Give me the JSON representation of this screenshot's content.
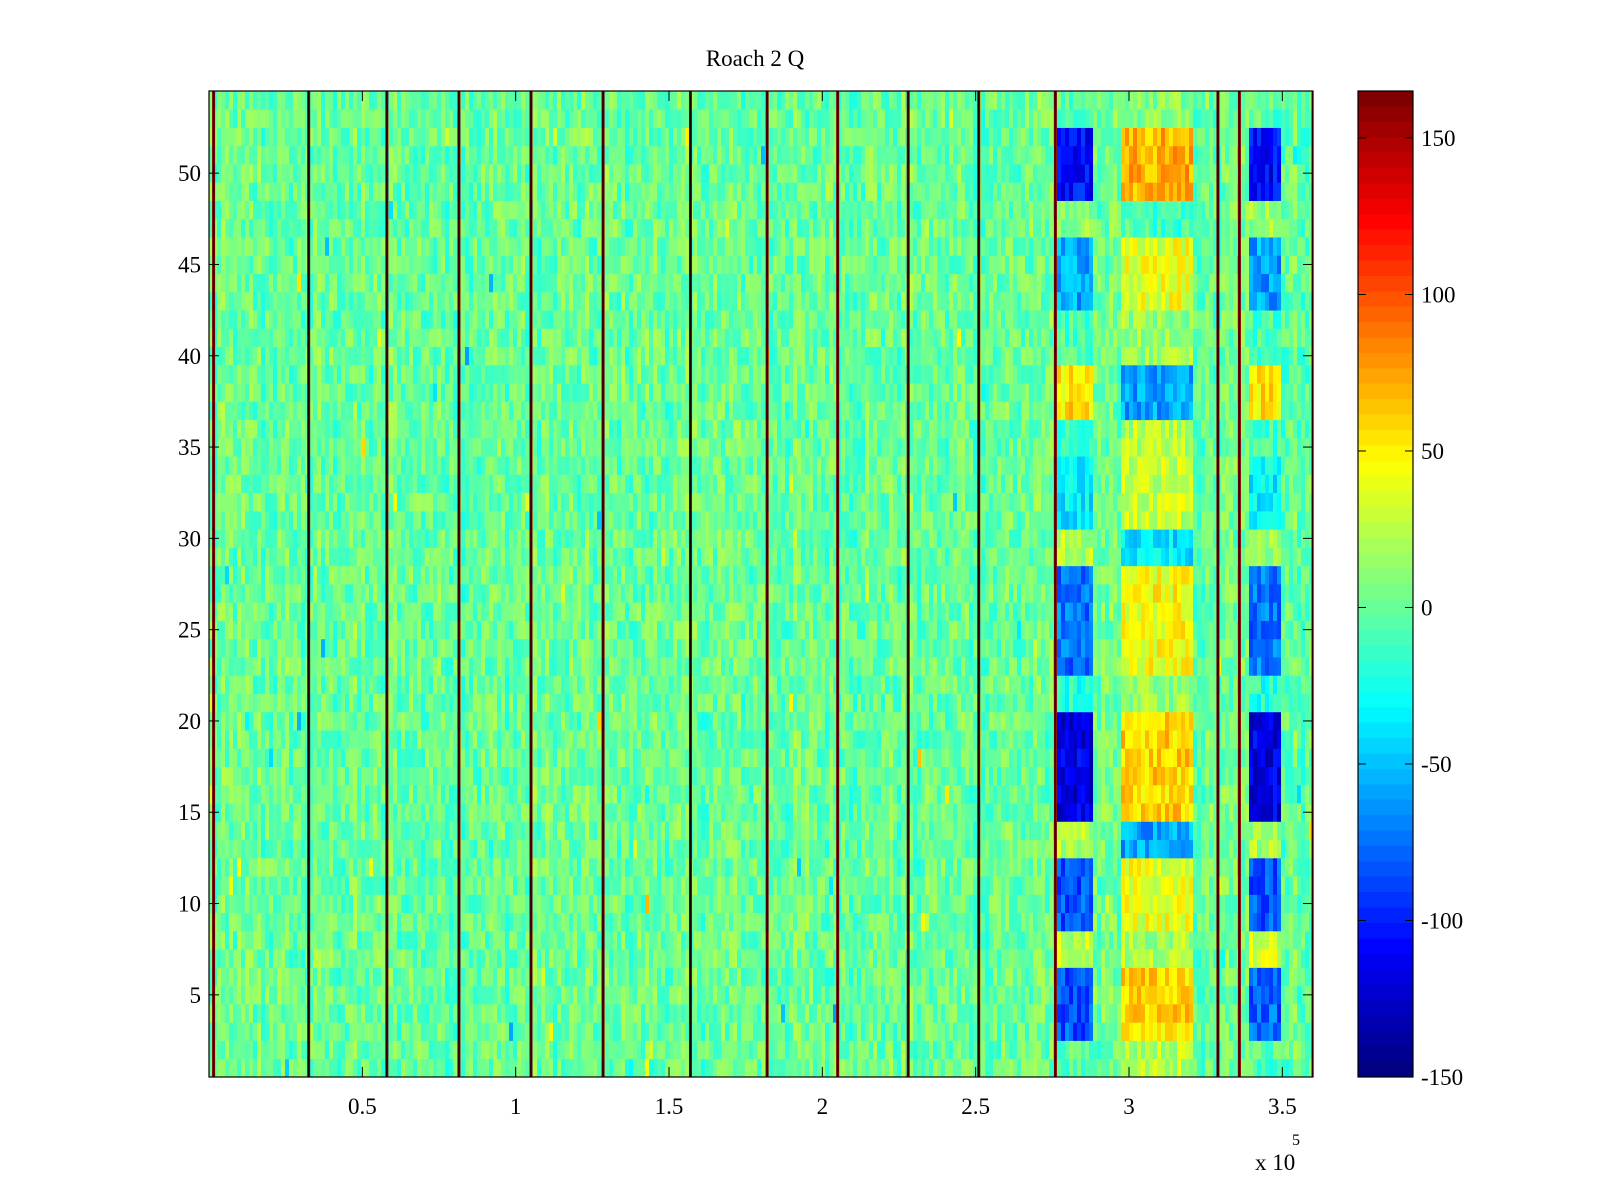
{
  "chart_data": {
    "type": "heatmap",
    "title": "Roach 2 Q",
    "xlabel": "",
    "ylabel": "",
    "x_exponent_label": "x 10",
    "x_exponent_power": "5",
    "x_multiplier": 100000,
    "xlim": [
      0,
      360000
    ],
    "ylim": [
      0.5,
      54.5
    ],
    "xticks": [
      0.5,
      1,
      1.5,
      2,
      2.5,
      3,
      3.5
    ],
    "xtick_labels": [
      "0.5",
      "1",
      "1.5",
      "2",
      "2.5",
      "3",
      "3.5"
    ],
    "yticks": [
      5,
      10,
      15,
      20,
      25,
      30,
      35,
      40,
      45,
      50
    ],
    "ytick_labels": [
      "5",
      "10",
      "15",
      "20",
      "25",
      "30",
      "35",
      "40",
      "45",
      "50"
    ],
    "rows": 54,
    "colormap": "jet",
    "clim": [
      -150,
      165
    ],
    "colorbar_ticks": [
      -150,
      -100,
      -50,
      0,
      50,
      100,
      150
    ],
    "colorbar_tick_labels": [
      "-150",
      "-100",
      "-50",
      "0",
      "50",
      "100",
      "150"
    ],
    "grid": false,
    "background_level": 0,
    "background_noise_amplitude": 20,
    "boundary_lines": {
      "value": 165,
      "x_positions": [
        1500,
        32500,
        58000,
        81500,
        105000,
        128500,
        157000,
        182000,
        205000,
        228000,
        251000,
        276000,
        329000,
        336000,
        360000
      ]
    },
    "regions": [
      {
        "name": "block-a",
        "x_range": [
          277000,
          288000
        ]
      },
      {
        "name": "block-b",
        "x_range": [
          297000,
          321000
        ]
      },
      {
        "name": "block-c",
        "x_range": [
          339000,
          349000
        ]
      }
    ],
    "region_row_levels": [
      {
        "rows": [
          1,
          2
        ],
        "block-a": -5,
        "block-b": 25,
        "block-c": -5
      },
      {
        "rows": [
          3,
          6
        ],
        "block-a": -85,
        "block-b": 60,
        "block-c": -80
      },
      {
        "rows": [
          7,
          8
        ],
        "block-a": 30,
        "block-b": 20,
        "block-c": 30
      },
      {
        "rows": [
          9,
          12
        ],
        "block-a": -85,
        "block-b": 40,
        "block-c": -85
      },
      {
        "rows": [
          13,
          14
        ],
        "block-a": 20,
        "block-b": -60,
        "block-c": 20
      },
      {
        "rows": [
          15,
          20
        ],
        "block-a": -120,
        "block-b": 60,
        "block-c": -120
      },
      {
        "rows": [
          21,
          22
        ],
        "block-a": -20,
        "block-b": 15,
        "block-c": -20
      },
      {
        "rows": [
          23,
          28
        ],
        "block-a": -75,
        "block-b": 45,
        "block-c": -75
      },
      {
        "rows": [
          29,
          30
        ],
        "block-a": 25,
        "block-b": -40,
        "block-c": 20
      },
      {
        "rows": [
          31,
          34
        ],
        "block-a": -35,
        "block-b": 30,
        "block-c": -35
      },
      {
        "rows": [
          35,
          36
        ],
        "block-a": -10,
        "block-b": 25,
        "block-c": -10
      },
      {
        "rows": [
          37,
          39
        ],
        "block-a": 55,
        "block-b": -60,
        "block-c": 55
      },
      {
        "rows": [
          40,
          42
        ],
        "block-a": -10,
        "block-b": 15,
        "block-c": -10
      },
      {
        "rows": [
          43,
          46
        ],
        "block-a": -60,
        "block-b": 40,
        "block-c": -60
      },
      {
        "rows": [
          47,
          48
        ],
        "block-a": 15,
        "block-b": -10,
        "block-c": 15
      },
      {
        "rows": [
          49,
          52
        ],
        "block-a": -110,
        "block-b": 70,
        "block-c": -110
      },
      {
        "rows": [
          53,
          54
        ],
        "block-a": -5,
        "block-b": 10,
        "block-c": -5
      }
    ]
  }
}
